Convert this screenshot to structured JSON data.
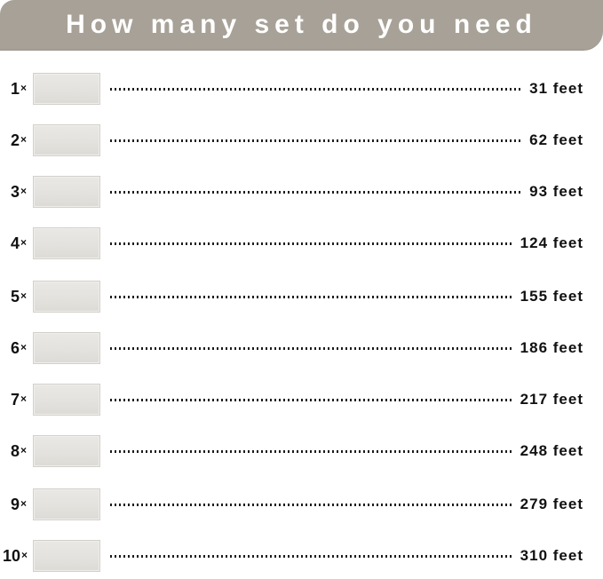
{
  "header": {
    "title": "How many set do you need"
  },
  "colors": {
    "banner": "#a7a197",
    "banner_text": "#ffffff",
    "thumbnail_fill": "#e4e2de",
    "dot": "#1c1c1c",
    "text": "#111111",
    "background": "#ffffff"
  },
  "rows": [
    {
      "count": "1",
      "times": "×",
      "length": "31 feet"
    },
    {
      "count": "2",
      "times": "×",
      "length": "62 feet"
    },
    {
      "count": "3",
      "times": "×",
      "length": "93 feet"
    },
    {
      "count": "4",
      "times": "×",
      "length": "124 feet"
    },
    {
      "count": "5",
      "times": "×",
      "length": "155 feet"
    },
    {
      "count": "6",
      "times": "×",
      "length": "186 feet"
    },
    {
      "count": "7",
      "times": "×",
      "length": "217 feet"
    },
    {
      "count": "8",
      "times": "×",
      "length": "248 feet"
    },
    {
      "count": "9",
      "times": "×",
      "length": "279 feet"
    },
    {
      "count": "10",
      "times": "×",
      "length": "310 feet"
    }
  ],
  "chart_data": {
    "type": "table",
    "title": "How many set do you need",
    "categories": [
      "1×",
      "2×",
      "3×",
      "4×",
      "5×",
      "6×",
      "7×",
      "8×",
      "9×",
      "10×"
    ],
    "values": [
      31,
      62,
      93,
      124,
      155,
      186,
      217,
      248,
      279,
      310
    ],
    "unit": "feet",
    "legend_position": "none",
    "grid": false
  }
}
